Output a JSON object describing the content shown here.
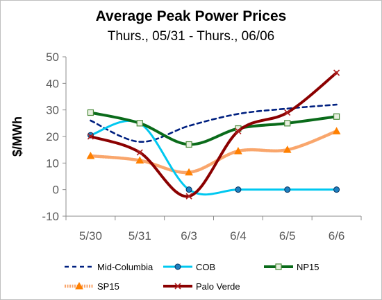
{
  "chart_data": {
    "type": "line",
    "title": "Average Peak Power Prices",
    "subtitle": "Thurs., 05/31 - Thurs., 06/06",
    "ylabel": "$/MWh",
    "xlabel": "",
    "categories": [
      "5/30",
      "5/31",
      "6/3",
      "6/4",
      "6/5",
      "6/6"
    ],
    "ylim": [
      -10,
      50
    ],
    "yticks": [
      -10,
      0,
      10,
      20,
      30,
      40,
      50
    ],
    "ytick_labels": [
      "-10",
      "0",
      "10",
      "20",
      "30",
      "40",
      "50"
    ],
    "grid": false,
    "legend_position": "bottom",
    "series": [
      {
        "name": "Mid-Columbia",
        "values": [
          26,
          18,
          24,
          28.5,
          30.5,
          32
        ],
        "color": "#002080",
        "style": "dashed",
        "marker": "none"
      },
      {
        "name": "COB",
        "values": [
          20.5,
          25,
          0,
          0,
          0,
          0
        ],
        "color": "#00c8f0",
        "style": "solid",
        "marker": "circle"
      },
      {
        "name": "NP15",
        "values": [
          29,
          25,
          17,
          23,
          25,
          27.5
        ],
        "color": "#0a6b1a",
        "style": "solid",
        "marker": "square"
      },
      {
        "name": "SP15",
        "values": [
          12.7,
          11,
          6.5,
          14.5,
          15,
          22
        ],
        "color": "#f9a66c",
        "style": "dotted-thick",
        "marker": "triangle"
      },
      {
        "name": "Palo Verde",
        "values": [
          20,
          14,
          -2.5,
          22,
          29,
          44
        ],
        "color": "#8b0000",
        "style": "solid",
        "marker": "x"
      }
    ]
  }
}
